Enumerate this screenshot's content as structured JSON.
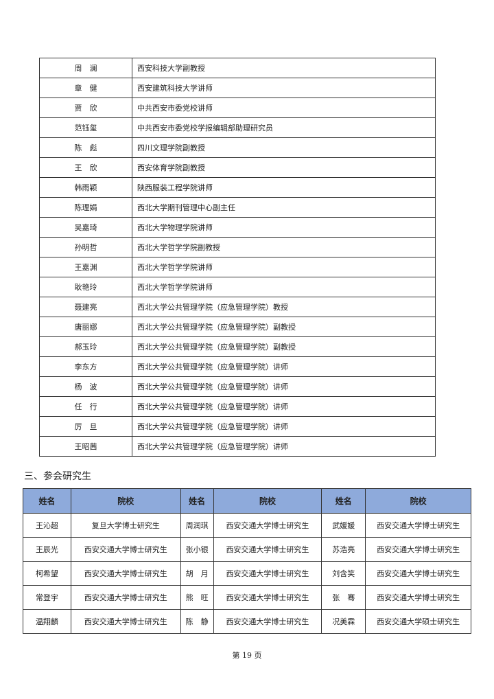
{
  "staff_table": [
    {
      "name": "周　澜",
      "affiliation": "西安科技大学副教授"
    },
    {
      "name": "章　健",
      "affiliation": "西安建筑科技大学讲师"
    },
    {
      "name": "贾　欣",
      "affiliation": "中共西安市委党校讲师"
    },
    {
      "name": "范钰玺",
      "affiliation": "中共西安市委党校学报编辑部助理研究员"
    },
    {
      "name": "陈　彪",
      "affiliation": "四川文理学院副教授"
    },
    {
      "name": "王　欣",
      "affiliation": "西安体育学院副教授"
    },
    {
      "name": "韩雨颖",
      "affiliation": "陕西服装工程学院讲师"
    },
    {
      "name": "陈理娟",
      "affiliation": "西北大学期刊管理中心副主任"
    },
    {
      "name": "吴嘉琦",
      "affiliation": "西北大学物理学院讲师"
    },
    {
      "name": "孙明哲",
      "affiliation": "西北大学哲学学院副教授"
    },
    {
      "name": "王嘉渊",
      "affiliation": "西北大学哲学学院讲师"
    },
    {
      "name": "耿艳玲",
      "affiliation": "西北大学哲学学院讲师"
    },
    {
      "name": "聂建亮",
      "affiliation": "西北大学公共管理学院（应急管理学院）教授"
    },
    {
      "name": "唐丽娜",
      "affiliation": "西北大学公共管理学院（应急管理学院）副教授"
    },
    {
      "name": "郝玉玲",
      "affiliation": "西北大学公共管理学院（应急管理学院）副教授"
    },
    {
      "name": "李东方",
      "affiliation": "西北大学公共管理学院（应急管理学院）讲师"
    },
    {
      "name": "杨　波",
      "affiliation": "西北大学公共管理学院（应急管理学院）讲师"
    },
    {
      "name": "任　行",
      "affiliation": "西北大学公共管理学院（应急管理学院）讲师"
    },
    {
      "name": "厉　旦",
      "affiliation": "西北大学公共管理学院（应急管理学院）讲师"
    },
    {
      "name": "王昭茜",
      "affiliation": "西北大学公共管理学院（应急管理学院）讲师"
    }
  ],
  "section_title": "三、参会研究生",
  "students_table": {
    "headers": [
      "姓名",
      "院校",
      "姓名",
      "院校",
      "姓名",
      "院校"
    ],
    "header_color": "#8eaadb",
    "rows": [
      [
        "王沁超",
        "复旦大学博士研究生",
        "周润琪",
        "西安交通大学博士研究生",
        "武媛媛",
        "西安交通大学博士研究生"
      ],
      [
        "王辰光",
        "西安交通大学博士研究生",
        "张小银",
        "西安交通大学博士研究生",
        "苏浩亮",
        "西安交通大学博士研究生"
      ],
      [
        "柯希望",
        "西安交通大学博士研究生",
        "胡　月",
        "西安交通大学博士研究生",
        "刘含笑",
        "西安交通大学博士研究生"
      ],
      [
        "常登宇",
        "西安交通大学博士研究生",
        "熊　旺",
        "西安交通大学博士研究生",
        "张　骞",
        "西安交通大学博士研究生"
      ],
      [
        "温翔麟",
        "西安交通大学博士研究生",
        "陈　静",
        "西安交通大学博士研究生",
        "况美霖",
        "西安交通大学硕士研究生"
      ]
    ]
  },
  "footer": {
    "page_label": "第 19 页"
  }
}
